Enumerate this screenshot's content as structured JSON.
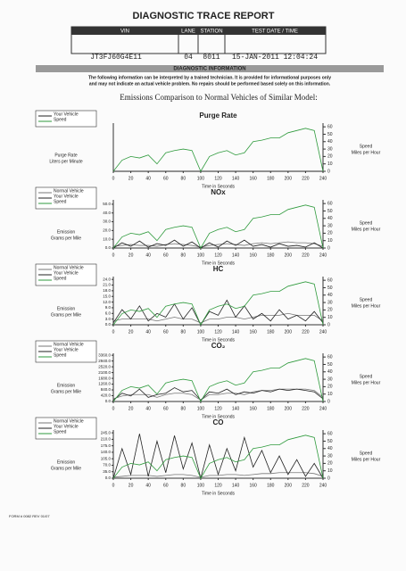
{
  "header": {
    "title": "DIAGNOSTIC TRACE REPORT",
    "columns": [
      "VIN",
      "LANE",
      "STATION",
      "TEST DATE / TIME"
    ],
    "values": [
      "JT3FJ60G4E11",
      "04",
      "8011",
      "15-JAN-2011 12:04:24"
    ]
  },
  "section": {
    "title": "DIAGNOSTIC INFORMATION",
    "notice": [
      "The following information can be interpreted by a trained technician. It is provided for informational purposes only",
      "and may not indicate an actual vehicle problem. No repairs should be performed based solely on this information."
    ],
    "subtitle": "Emissions Comparison to Normal Vehicles of Similar Model:"
  },
  "footer": "FORM # 0082 REV 01/07",
  "chart_data": [
    {
      "type": "line",
      "title": "Purge Rate",
      "ylabel": [
        "Purge Rate",
        "Liters per Minute"
      ],
      "y2label": [
        "Speed",
        "Miles per Hour"
      ],
      "xlabel": "Time in Seconds",
      "x": [
        0,
        10,
        20,
        30,
        40,
        50,
        60,
        70,
        80,
        90,
        100,
        110,
        120,
        130,
        140,
        150,
        160,
        170,
        180,
        190,
        200,
        210,
        220,
        230,
        240
      ],
      "xlim": [
        0,
        240
      ],
      "xticks": [
        0,
        20,
        40,
        60,
        80,
        100,
        120,
        140,
        160,
        180,
        200,
        220,
        240
      ],
      "ylim": [
        0,
        1
      ],
      "yticks": [],
      "y2lim": [
        0,
        65
      ],
      "y2ticks": [
        0,
        10,
        20,
        30,
        40,
        50,
        60
      ],
      "series": [
        {
          "name": "Your Vehicle",
          "color": "#222222",
          "values": [
            0,
            0,
            0,
            0,
            0,
            0,
            0,
            0,
            0,
            0,
            0,
            0,
            0,
            0,
            0,
            0,
            0,
            0,
            0,
            0,
            0,
            0,
            0,
            0,
            0
          ]
        },
        {
          "name": "Speed",
          "color": "#2e9a3c",
          "axis": "y2",
          "values": [
            0,
            15,
            20,
            18,
            22,
            10,
            25,
            28,
            30,
            28,
            0,
            20,
            25,
            28,
            22,
            25,
            40,
            42,
            45,
            45,
            52,
            55,
            58,
            55,
            0
          ]
        }
      ]
    },
    {
      "type": "line",
      "title": "NOx",
      "ylabel": [
        "Emission",
        "Grams per Mile"
      ],
      "y2label": [
        "Speed",
        "Miles per Hour"
      ],
      "xlabel": "Time in Seconds",
      "x": [
        0,
        10,
        20,
        30,
        40,
        50,
        60,
        70,
        80,
        90,
        100,
        110,
        120,
        130,
        140,
        150,
        160,
        170,
        180,
        190,
        200,
        210,
        220,
        230,
        240
      ],
      "xlim": [
        0,
        240
      ],
      "xticks": [
        0,
        20,
        40,
        60,
        80,
        100,
        120,
        140,
        160,
        180,
        200,
        220,
        240
      ],
      "ylim": [
        0,
        55
      ],
      "yticks": [
        {
          "value": 0,
          "label": "0.0"
        },
        {
          "value": 10,
          "label": "10.0"
        },
        {
          "value": 20,
          "label": "20.0"
        },
        {
          "value": 30,
          "label": "30.0"
        },
        {
          "value": 40,
          "label": "40.0"
        },
        {
          "value": 50,
          "label": "50.0"
        }
      ],
      "y2lim": [
        0,
        65
      ],
      "y2ticks": [
        0,
        10,
        20,
        30,
        40,
        50,
        60
      ],
      "series": [
        {
          "name": "Normal Vehicle",
          "color": "#777777",
          "values": [
            2,
            3,
            4,
            3,
            3,
            2,
            4,
            5,
            4,
            3,
            1,
            3,
            4,
            5,
            4,
            3,
            5,
            6,
            5,
            6,
            7,
            6,
            6,
            5,
            2
          ]
        },
        {
          "name": "Your Vehicle",
          "color": "#222222",
          "values": [
            0,
            6,
            2,
            8,
            1,
            5,
            3,
            9,
            2,
            7,
            0,
            6,
            1,
            8,
            3,
            9,
            2,
            4,
            1,
            5,
            2,
            3,
            1,
            6,
            0
          ]
        },
        {
          "name": "Speed",
          "color": "#2e9a3c",
          "axis": "y2",
          "values": [
            0,
            15,
            20,
            18,
            22,
            10,
            25,
            28,
            30,
            28,
            0,
            20,
            25,
            28,
            22,
            25,
            40,
            42,
            45,
            45,
            52,
            55,
            58,
            55,
            0
          ]
        }
      ]
    },
    {
      "type": "line",
      "title": "HC",
      "ylabel": [
        "Emission",
        "Grams per Mile"
      ],
      "y2label": [
        "Speed",
        "Miles per Hour"
      ],
      "xlabel": "Time in Seconds",
      "x": [
        0,
        10,
        20,
        30,
        40,
        50,
        60,
        70,
        80,
        90,
        100,
        110,
        120,
        130,
        140,
        150,
        160,
        170,
        180,
        190,
        200,
        210,
        220,
        230,
        240
      ],
      "xlim": [
        0,
        240
      ],
      "xticks": [
        0,
        20,
        40,
        60,
        80,
        100,
        120,
        140,
        160,
        180,
        200,
        220,
        240
      ],
      "ylim": [
        0,
        25.5
      ],
      "yticks": [
        {
          "value": 0,
          "label": "0.0"
        },
        {
          "value": 3,
          "label": "3.0"
        },
        {
          "value": 6,
          "label": "6.0"
        },
        {
          "value": 9,
          "label": "9.0"
        },
        {
          "value": 12,
          "label": "12.0"
        },
        {
          "value": 15,
          "label": "15.0"
        },
        {
          "value": 18,
          "label": "18.0"
        },
        {
          "value": 21,
          "label": "21.0"
        },
        {
          "value": 24,
          "label": "24.0"
        }
      ],
      "y2lim": [
        0,
        65
      ],
      "y2ticks": [
        0,
        10,
        20,
        30,
        40,
        50,
        60
      ],
      "series": [
        {
          "name": "Normal Vehicle",
          "color": "#777777",
          "values": [
            2,
            3,
            3,
            3,
            3,
            2,
            3,
            4,
            3,
            3,
            1,
            3,
            3,
            4,
            4,
            3,
            4,
            5,
            5,
            5,
            6,
            5,
            5,
            5,
            2
          ]
        },
        {
          "name": "Your Vehicle",
          "color": "#222222",
          "values": [
            1,
            8,
            3,
            10,
            2,
            6,
            4,
            11,
            3,
            9,
            0,
            7,
            5,
            13,
            4,
            10,
            3,
            6,
            2,
            8,
            3,
            5,
            2,
            7,
            1
          ]
        },
        {
          "name": "Speed",
          "color": "#2e9a3c",
          "axis": "y2",
          "values": [
            0,
            15,
            20,
            18,
            22,
            10,
            25,
            28,
            30,
            28,
            0,
            20,
            25,
            28,
            22,
            25,
            40,
            42,
            45,
            45,
            52,
            55,
            58,
            55,
            0
          ]
        }
      ]
    },
    {
      "type": "line",
      "title": "CO₂",
      "ylabel": [
        "Emission",
        "Grams per Mile"
      ],
      "y2label": [
        "Speed",
        "Miles per Hour"
      ],
      "xlabel": "Time in Seconds",
      "x": [
        0,
        10,
        20,
        30,
        40,
        50,
        60,
        70,
        80,
        90,
        100,
        110,
        120,
        130,
        140,
        150,
        160,
        170,
        180,
        190,
        200,
        210,
        220,
        230,
        240
      ],
      "xlim": [
        0,
        240
      ],
      "xticks": [
        0,
        20,
        40,
        60,
        80,
        100,
        120,
        140,
        160,
        180,
        200,
        220,
        240
      ],
      "ylim": [
        0,
        3500
      ],
      "yticks": [
        {
          "value": 0,
          "label": "0.0"
        },
        {
          "value": 420,
          "label": "420.0"
        },
        {
          "value": 840,
          "label": "840.0"
        },
        {
          "value": 1260,
          "label": "1260.0"
        },
        {
          "value": 1680,
          "label": "1680.0"
        },
        {
          "value": 2100,
          "label": "2100.0"
        },
        {
          "value": 2520,
          "label": "2520.0"
        },
        {
          "value": 2940,
          "label": "2940.0"
        },
        {
          "value": 3360,
          "label": "3360.0"
        }
      ],
      "y2lim": [
        0,
        65
      ],
      "y2ticks": [
        0,
        10,
        20,
        30,
        40,
        50,
        60
      ],
      "series": [
        {
          "name": "Normal Vehicle",
          "color": "#777777",
          "values": [
            200,
            400,
            500,
            500,
            500,
            300,
            500,
            600,
            600,
            500,
            100,
            500,
            500,
            600,
            600,
            500,
            700,
            800,
            800,
            900,
            900,
            900,
            900,
            800,
            300
          ]
        },
        {
          "name": "Your Vehicle",
          "color": "#222222",
          "values": [
            100,
            600,
            400,
            900,
            300,
            500,
            600,
            1000,
            700,
            800,
            100,
            700,
            600,
            900,
            500,
            700,
            600,
            800,
            700,
            900,
            800,
            900,
            800,
            700,
            200
          ]
        },
        {
          "name": "Speed",
          "color": "#2e9a3c",
          "axis": "y2",
          "values": [
            0,
            15,
            20,
            18,
            22,
            10,
            25,
            28,
            30,
            28,
            0,
            20,
            25,
            28,
            22,
            25,
            40,
            42,
            45,
            45,
            52,
            55,
            58,
            55,
            0
          ]
        }
      ]
    },
    {
      "type": "line",
      "title": "CO",
      "ylabel": [
        "Emission",
        "Grams per Mile"
      ],
      "y2label": [
        "Speed",
        "Miles per Hour"
      ],
      "xlabel": "Time in Seconds",
      "x": [
        0,
        10,
        20,
        30,
        40,
        50,
        60,
        70,
        80,
        90,
        100,
        110,
        120,
        130,
        140,
        150,
        160,
        170,
        180,
        190,
        200,
        210,
        220,
        230,
        240
      ],
      "xlim": [
        0,
        240
      ],
      "xticks": [
        0,
        20,
        40,
        60,
        80,
        100,
        120,
        140,
        160,
        180,
        200,
        220,
        240
      ],
      "ylim": [
        0,
        260
      ],
      "yticks": [
        {
          "value": 0,
          "label": "0.0"
        },
        {
          "value": 35,
          "label": "35.0"
        },
        {
          "value": 70,
          "label": "70.0"
        },
        {
          "value": 105,
          "label": "105.0"
        },
        {
          "value": 140,
          "label": "140.0"
        },
        {
          "value": 175,
          "label": "175.0"
        },
        {
          "value": 210,
          "label": "210.0"
        },
        {
          "value": 245,
          "label": "245.0"
        }
      ],
      "y2lim": [
        0,
        65
      ],
      "y2ticks": [
        0,
        10,
        20,
        30,
        40,
        50,
        60
      ],
      "series": [
        {
          "name": "Normal Vehicle",
          "color": "#777777",
          "values": [
            5,
            10,
            15,
            15,
            15,
            10,
            15,
            20,
            20,
            15,
            5,
            15,
            15,
            20,
            20,
            15,
            20,
            25,
            25,
            30,
            30,
            30,
            30,
            25,
            10
          ]
        },
        {
          "name": "Your Vehicle",
          "color": "#222222",
          "values": [
            0,
            160,
            20,
            240,
            10,
            200,
            30,
            230,
            50,
            190,
            0,
            180,
            20,
            160,
            40,
            220,
            60,
            150,
            30,
            120,
            20,
            100,
            10,
            80,
            0
          ]
        },
        {
          "name": "Speed",
          "color": "#2e9a3c",
          "axis": "y2",
          "values": [
            0,
            15,
            20,
            18,
            22,
            10,
            25,
            28,
            30,
            28,
            0,
            20,
            25,
            28,
            22,
            25,
            40,
            42,
            45,
            45,
            52,
            55,
            58,
            55,
            0
          ]
        }
      ]
    }
  ]
}
